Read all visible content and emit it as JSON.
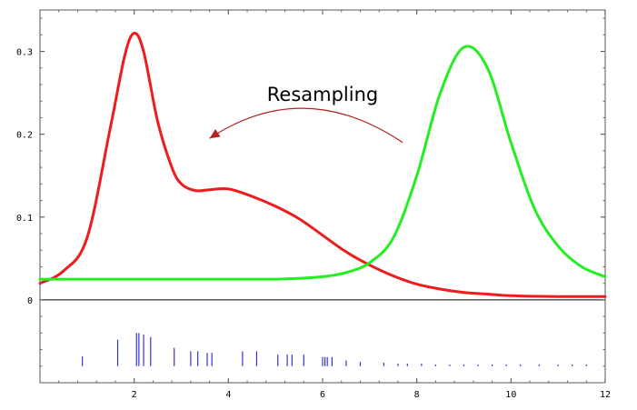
{
  "chart_data": {
    "type": "line",
    "title": "",
    "xlabel": "",
    "ylabel": "",
    "xlim": [
      0,
      12
    ],
    "ylim": [
      -0.1,
      0.35
    ],
    "xticks": [
      2,
      4,
      6,
      8,
      10,
      12
    ],
    "yticks": [
      0,
      0.1,
      0.2,
      0.3
    ],
    "xtick_labels": [
      "2",
      "4",
      "6",
      "8",
      "10",
      "12"
    ],
    "ytick_labels": [
      "0",
      "0.1",
      "0.2",
      "0.3"
    ],
    "grid": false,
    "zero_line": true,
    "series": [
      {
        "color": "#ee1c1c",
        "x": [
          0,
          0.5,
          1.0,
          1.5,
          1.8,
          2.0,
          2.2,
          2.5,
          2.8,
          3.0,
          3.3,
          3.6,
          4.0,
          4.5,
          5.0,
          5.5,
          6.0,
          6.5,
          7.0,
          7.5,
          8.0,
          8.5,
          9.0,
          9.5,
          10.0,
          11.0,
          12.0
        ],
        "y": [
          0.02,
          0.035,
          0.075,
          0.21,
          0.295,
          0.322,
          0.3,
          0.215,
          0.16,
          0.14,
          0.132,
          0.133,
          0.134,
          0.125,
          0.113,
          0.098,
          0.078,
          0.058,
          0.042,
          0.029,
          0.019,
          0.013,
          0.009,
          0.007,
          0.005,
          0.004,
          0.004
        ]
      },
      {
        "color": "#22ee22",
        "x": [
          0,
          1,
          2,
          3,
          4,
          5,
          5.5,
          6.0,
          6.5,
          7.0,
          7.5,
          8.0,
          8.5,
          9.0,
          9.5,
          10.0,
          10.5,
          11.0,
          11.5,
          12.0
        ],
        "y": [
          0.025,
          0.025,
          0.025,
          0.025,
          0.025,
          0.025,
          0.026,
          0.028,
          0.033,
          0.045,
          0.075,
          0.15,
          0.25,
          0.305,
          0.28,
          0.19,
          0.11,
          0.065,
          0.04,
          0.028
        ]
      }
    ],
    "rug": {
      "color": "#3333dd",
      "ticks": [
        {
          "x": 0.9,
          "h": 0.012
        },
        {
          "x": 1.65,
          "h": 0.032
        },
        {
          "x": 2.05,
          "h": 0.04
        },
        {
          "x": 2.1,
          "h": 0.04
        },
        {
          "x": 2.2,
          "h": 0.038
        },
        {
          "x": 2.35,
          "h": 0.035
        },
        {
          "x": 2.85,
          "h": 0.022
        },
        {
          "x": 3.2,
          "h": 0.018
        },
        {
          "x": 3.35,
          "h": 0.018
        },
        {
          "x": 3.55,
          "h": 0.016
        },
        {
          "x": 3.65,
          "h": 0.016
        },
        {
          "x": 4.3,
          "h": 0.018
        },
        {
          "x": 4.6,
          "h": 0.018
        },
        {
          "x": 5.05,
          "h": 0.014
        },
        {
          "x": 5.25,
          "h": 0.014
        },
        {
          "x": 5.35,
          "h": 0.014
        },
        {
          "x": 5.6,
          "h": 0.014
        },
        {
          "x": 6.0,
          "h": 0.011
        },
        {
          "x": 6.05,
          "h": 0.011
        },
        {
          "x": 6.1,
          "h": 0.011
        },
        {
          "x": 6.2,
          "h": 0.011
        },
        {
          "x": 6.5,
          "h": 0.007
        },
        {
          "x": 6.8,
          "h": 0.005
        },
        {
          "x": 7.3,
          "h": 0.004
        },
        {
          "x": 7.6,
          "h": 0.003
        },
        {
          "x": 7.8,
          "h": 0.003
        },
        {
          "x": 8.1,
          "h": 0.003
        },
        {
          "x": 8.4,
          "h": 0.002
        },
        {
          "x": 8.7,
          "h": 0.002
        },
        {
          "x": 9.0,
          "h": 0.002
        },
        {
          "x": 9.3,
          "h": 0.002
        },
        {
          "x": 9.6,
          "h": 0.002
        },
        {
          "x": 9.9,
          "h": 0.002
        },
        {
          "x": 10.2,
          "h": 0.002
        },
        {
          "x": 10.6,
          "h": 0.002
        },
        {
          "x": 11.0,
          "h": 0.002
        },
        {
          "x": 11.3,
          "h": 0.002
        },
        {
          "x": 11.6,
          "h": 0.002
        }
      ],
      "baseline": -0.08
    },
    "annotations": [
      {
        "text": "Resampling",
        "text_x": 6.0,
        "text_y": 0.24,
        "arrow_from": [
          7.7,
          0.19
        ],
        "arrow_via": [
          5.6,
          0.27
        ],
        "arrow_to": [
          3.6,
          0.195
        ],
        "color": "#b22222"
      }
    ]
  }
}
